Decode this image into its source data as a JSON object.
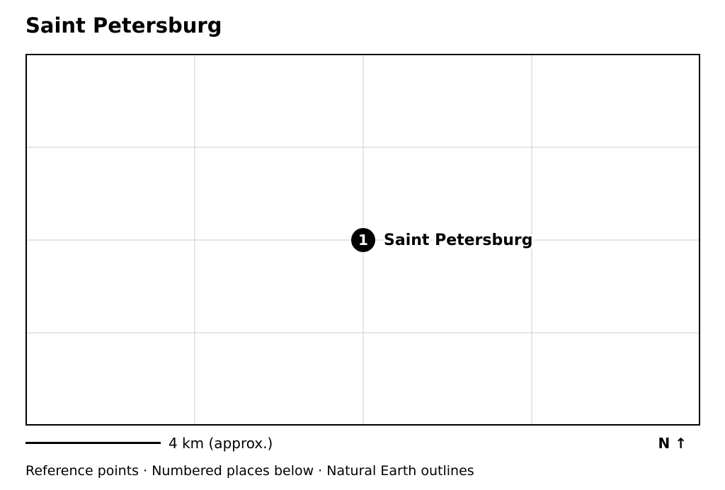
{
  "map": {
    "title": "Saint Petersburg",
    "markers": [
      {
        "number": "1",
        "label": "Saint Petersburg"
      }
    ],
    "scale": {
      "label": "4 km (approx.)"
    },
    "north": "N ↑",
    "footer": "Reference points · Numbered places below · Natural Earth outlines",
    "colors": {
      "marker": "#000000",
      "grid": "#cccccc",
      "frame": "#000000"
    }
  }
}
